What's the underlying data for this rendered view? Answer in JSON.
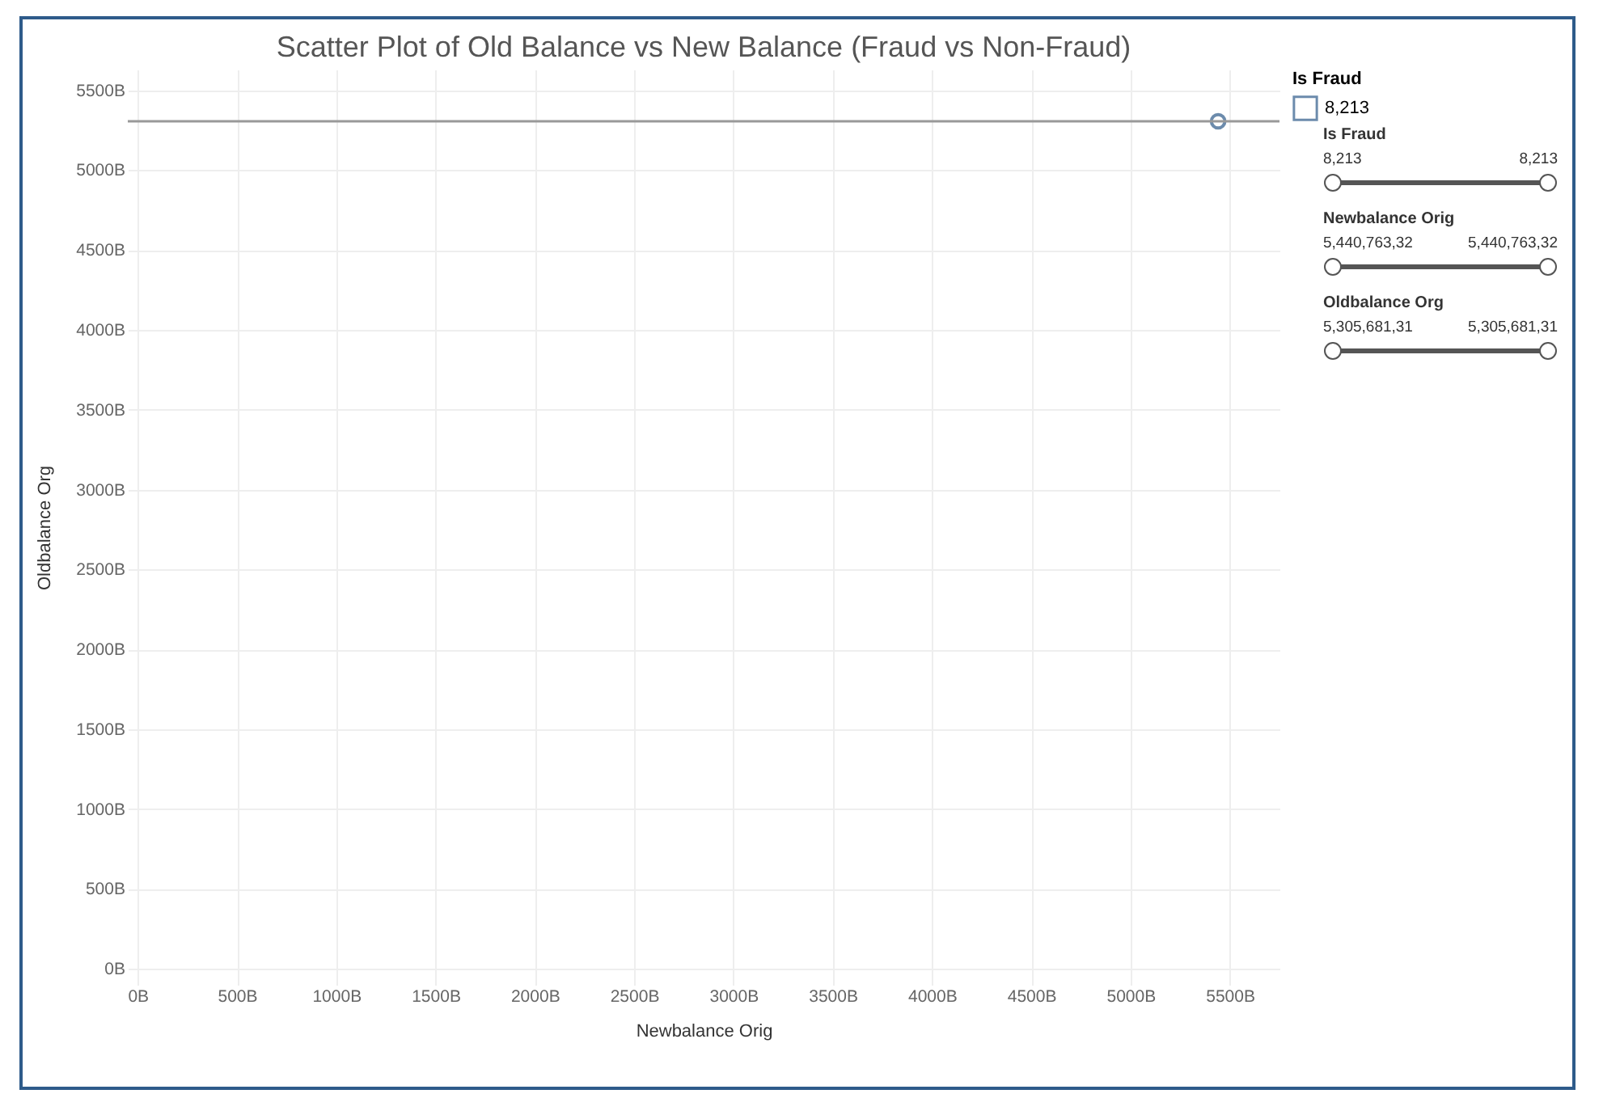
{
  "chart_data": {
    "type": "scatter",
    "title": "Scatter Plot of Old Balance vs New Balance (Fraud vs Non-Fraud)",
    "xlabel": "Newbalance Orig",
    "ylabel": "Oldbalance Org",
    "legend_title": "Is Fraud",
    "legend": "top right",
    "marker": "circle",
    "grid": true,
    "x": [
      5441
    ],
    "series": [
      {
        "name": "8,213",
        "color": "#2e5b8a",
        "values": [
          5306
        ]
      }
    ],
    "xlim": [
      -50,
      5750
    ],
    "ylim": [
      -100,
      5630
    ],
    "xticks": [
      {
        "value": 0,
        "label": "0B"
      },
      {
        "value": 500,
        "label": "500B"
      },
      {
        "value": 1000,
        "label": "1000B"
      },
      {
        "value": 1500,
        "label": "1500B"
      },
      {
        "value": 2000,
        "label": "2000B"
      },
      {
        "value": 2500,
        "label": "2500B"
      },
      {
        "value": 3000,
        "label": "3000B"
      },
      {
        "value": 3500,
        "label": "3500B"
      },
      {
        "value": 4000,
        "label": "4000B"
      },
      {
        "value": 4500,
        "label": "4500B"
      },
      {
        "value": 5000,
        "label": "5000B"
      },
      {
        "value": 5500,
        "label": "5500B"
      }
    ],
    "yticks": [
      {
        "value": 0,
        "label": "0B"
      },
      {
        "value": 500,
        "label": "500B"
      },
      {
        "value": 1000,
        "label": "1000B"
      },
      {
        "value": 1500,
        "label": "1500B"
      },
      {
        "value": 2000,
        "label": "2000B"
      },
      {
        "value": 2500,
        "label": "2500B"
      },
      {
        "value": 3000,
        "label": "3000B"
      },
      {
        "value": 3500,
        "label": "3500B"
      },
      {
        "value": 4000,
        "label": "4000B"
      },
      {
        "value": 4500,
        "label": "4500B"
      },
      {
        "value": 5000,
        "label": "5000B"
      },
      {
        "value": 5500,
        "label": "5500B"
      }
    ],
    "ref_lines": [
      {
        "axis": "y",
        "value": 5306,
        "color": "#999999"
      }
    ],
    "annotations": [
      "Is Fraud",
      "8,213",
      "8,213",
      "Newbalance Orig",
      "5,440,763,32",
      "5,440,763,32",
      "Oldbalance Org",
      "5,305,681,31",
      "5,305,681,31"
    ]
  }
}
